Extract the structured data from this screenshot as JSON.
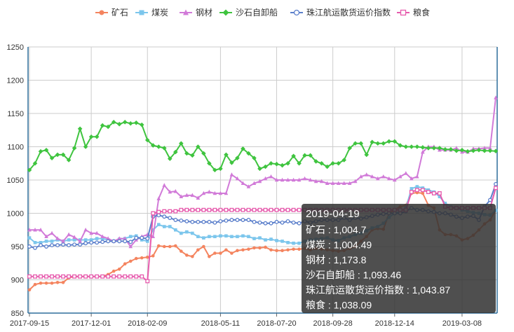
{
  "chart_data": {
    "type": "line",
    "x": [
      "2017-09-15",
      "2017-09-22",
      "2017-09-29",
      "2017-10-06",
      "2017-10-13",
      "2017-10-20",
      "2017-10-27",
      "2017-11-03",
      "2017-11-10",
      "2017-11-17",
      "2017-11-24",
      "2017-12-01",
      "2017-12-08",
      "2017-12-15",
      "2017-12-22",
      "2017-12-29",
      "2018-01-05",
      "2018-01-12",
      "2018-01-19",
      "2018-01-26",
      "2018-02-02",
      "2018-02-09",
      "2018-02-16",
      "2018-02-23",
      "2018-03-02",
      "2018-03-09",
      "2018-03-16",
      "2018-03-23",
      "2018-03-30",
      "2018-04-06",
      "2018-04-13",
      "2018-04-20",
      "2018-04-27",
      "2018-05-04",
      "2018-05-11",
      "2018-05-18",
      "2018-05-25",
      "2018-06-01",
      "2018-06-08",
      "2018-06-15",
      "2018-06-22",
      "2018-06-29",
      "2018-07-06",
      "2018-07-13",
      "2018-07-20",
      "2018-07-27",
      "2018-08-03",
      "2018-08-10",
      "2018-08-17",
      "2018-08-24",
      "2018-08-31",
      "2018-09-07",
      "2018-09-14",
      "2018-09-21",
      "2018-09-28",
      "2018-10-05",
      "2018-10-12",
      "2018-10-19",
      "2018-10-26",
      "2018-11-02",
      "2018-11-09",
      "2018-11-16",
      "2018-11-23",
      "2018-11-30",
      "2018-12-07",
      "2018-12-14",
      "2018-12-21",
      "2018-12-28",
      "2019-01-04",
      "2019-01-11",
      "2019-01-18",
      "2019-01-25",
      "2019-02-01",
      "2019-02-08",
      "2019-02-15",
      "2019-02-22",
      "2019-03-01",
      "2019-03-08",
      "2019-03-15",
      "2019-03-22",
      "2019-03-29",
      "2019-04-05",
      "2019-04-12",
      "2019-04-19"
    ],
    "x_tick_labels": [
      "2017-09-15",
      "2017-12-01",
      "2018-02-09",
      "2018-05-11",
      "2018-07-20",
      "2018-09-28",
      "2018-12-14",
      "2019-03-08"
    ],
    "ylim": [
      850,
      1250
    ],
    "y_ticks": [
      850,
      900,
      950,
      1000,
      1050,
      1100,
      1150,
      1200,
      1250
    ],
    "grid": true,
    "legend_position": "top",
    "series": [
      {
        "name": "矿石",
        "color": "#f4845f",
        "marker": "circle",
        "values": [
          885,
          893,
          895,
          895,
          895,
          896,
          896,
          903,
          905,
          905,
          905,
          905,
          905,
          905,
          908,
          913,
          916,
          924,
          928,
          932,
          933,
          934,
          936,
          951,
          950,
          950,
          951,
          943,
          937,
          935,
          945,
          950,
          935,
          940,
          940,
          945,
          940,
          944,
          945,
          946,
          948,
          948,
          949,
          945,
          944,
          944,
          945,
          946,
          946,
          947,
          945,
          947,
          946,
          945,
          944,
          943,
          944,
          947,
          950,
          958,
          965,
          975,
          977,
          976,
          1000,
          1005,
          1010,
          1012,
          1030,
          1031,
          1030,
          1012,
          1008,
          975,
          968,
          968,
          966,
          960,
          962,
          967,
          975,
          984,
          990,
          1004.7
        ]
      },
      {
        "name": "煤炭",
        "color": "#7cc6ec",
        "marker": "square",
        "values": [
          963,
          956,
          956,
          958,
          958,
          960,
          958,
          960,
          960,
          960,
          960,
          960,
          962,
          962,
          960,
          958,
          961,
          962,
          965,
          966,
          960,
          958,
          975,
          983,
          980,
          980,
          975,
          970,
          972,
          970,
          965,
          963,
          965,
          965,
          966,
          966,
          965,
          965,
          966,
          965,
          962,
          963,
          960,
          961,
          959,
          958,
          956,
          955,
          955,
          958,
          960,
          961,
          962,
          963,
          960,
          959,
          963,
          965,
          968,
          970,
          974,
          978,
          980,
          985,
          994,
          1000,
          1003,
          1008,
          1037,
          1040,
          1038,
          1035,
          1032,
          1025,
          1015,
          1010,
          1008,
          1005,
          1003,
          1001,
          1000,
          998,
          997,
          1004.49
        ]
      },
      {
        "name": "钢材",
        "color": "#d17ad8",
        "marker": "triangle",
        "values": [
          975,
          975,
          975,
          965,
          970,
          962,
          958,
          968,
          964,
          958,
          975,
          970,
          970,
          965,
          962,
          958,
          962,
          962,
          950,
          960,
          965,
          968,
          965,
          1022,
          1042,
          1032,
          1033,
          1025,
          1027,
          1027,
          1023,
          1030,
          1032,
          1030,
          1030,
          1030,
          1058,
          1052,
          1045,
          1040,
          1045,
          1048,
          1052,
          1055,
          1050,
          1050,
          1050,
          1050,
          1050,
          1052,
          1050,
          1048,
          1048,
          1045,
          1045,
          1045,
          1045,
          1045,
          1048,
          1055,
          1058,
          1055,
          1052,
          1055,
          1052,
          1050,
          1055,
          1060,
          1052,
          1055,
          1092,
          1100,
          1100,
          1095,
          1095,
          1095,
          1098,
          1092,
          1092,
          1097,
          1097,
          1098,
          1098,
          1173.8
        ]
      },
      {
        "name": "沙石自卸船",
        "color": "#3fc43f",
        "marker": "diamond",
        "values": [
          1065,
          1075,
          1093,
          1095,
          1083,
          1088,
          1088,
          1080,
          1098,
          1127,
          1100,
          1115,
          1115,
          1132,
          1130,
          1137,
          1134,
          1137,
          1135,
          1136,
          1133,
          1110,
          1102,
          1100,
          1098,
          1082,
          1092,
          1105,
          1090,
          1087,
          1100,
          1090,
          1075,
          1065,
          1067,
          1088,
          1076,
          1083,
          1097,
          1090,
          1083,
          1067,
          1070,
          1075,
          1074,
          1072,
          1075,
          1086,
          1075,
          1087,
          1087,
          1078,
          1075,
          1070,
          1075,
          1075,
          1080,
          1098,
          1105,
          1105,
          1088,
          1107,
          1105,
          1105,
          1108,
          1108,
          1102,
          1100,
          1100,
          1100,
          1099,
          1098,
          1098,
          1098,
          1096,
          1096,
          1094,
          1095,
          1093,
          1094,
          1095,
          1094,
          1094,
          1093.46
        ]
      },
      {
        "name": "珠江航运散货运价指数",
        "color": "#5b7fcb",
        "marker": "circle-hollow",
        "values": [
          950,
          948,
          952,
          950,
          952,
          952,
          953,
          952,
          953,
          953,
          955,
          956,
          956,
          957,
          958,
          958,
          958,
          958,
          957,
          963,
          963,
          962,
          995,
          997,
          995,
          993,
          990,
          989,
          988,
          987,
          987,
          987,
          987,
          986,
          988,
          989,
          990,
          990,
          990,
          990,
          987,
          986,
          985,
          985,
          987,
          986,
          988,
          986,
          985,
          988,
          986,
          988,
          990,
          990,
          990,
          990,
          993,
          990,
          993,
          992,
          994,
          996,
          998,
          999,
          1000,
          1000,
          1000,
          1003,
          1008,
          1005,
          1005,
          1003,
          1002,
          1000,
          1000,
          998,
          995,
          993,
          995,
          996,
          990,
          1010,
          1020,
          1043.87
        ]
      },
      {
        "name": "粮食",
        "color": "#e65bad",
        "marker": "square-hollow",
        "values": [
          905,
          905,
          905,
          905,
          905,
          905,
          905,
          905,
          905,
          905,
          905,
          905,
          905,
          905,
          905,
          905,
          905,
          905,
          905,
          905,
          905,
          898,
          1000,
          1002,
          1003,
          1003,
          1003,
          1005,
          1005,
          1005,
          1005,
          1005,
          1005,
          1005,
          1005,
          1005,
          1005,
          1005,
          1005,
          1005,
          1005,
          1005,
          1005,
          1005,
          1005,
          1005,
          1005,
          1005,
          1005,
          1005,
          1005,
          1005,
          1005,
          1005,
          1005,
          1005,
          1005,
          1005,
          1005,
          1005,
          1005,
          1005,
          1005,
          1005,
          1005,
          1005,
          1005,
          1005,
          1032,
          1035,
          1035,
          1032,
          1030,
          1030,
          1010,
          1008,
          1008,
          1008,
          1008,
          1008,
          1008,
          1008,
          1008,
          1038.09
        ]
      }
    ],
    "tooltip": {
      "date": "2019-04-19",
      "rows": [
        "矿石 : 1,004.7",
        "煤炭 : 1,004.49",
        "钢材 : 1,173.8",
        "沙石自卸船 : 1,093.46",
        "珠江航运散货运价指数 : 1,043.87",
        "粮食 : 1,038.09"
      ]
    }
  }
}
